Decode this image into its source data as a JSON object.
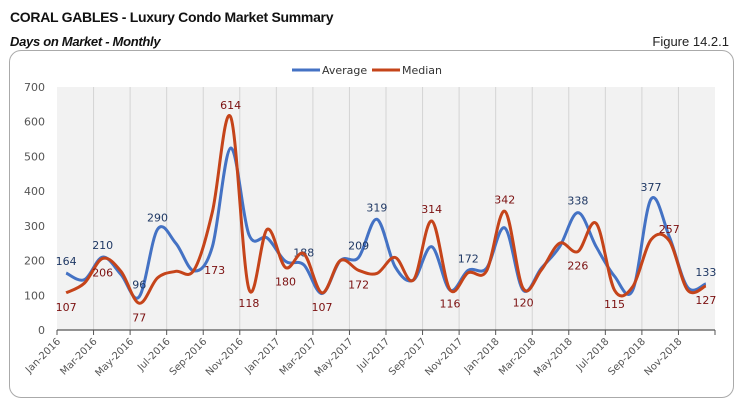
{
  "header": {
    "title": "CORAL GABLES - Luxury Condo Market Summary",
    "subtitle": "Days on Market - Monthly",
    "figure": "Figure 14.2.1"
  },
  "chart_data": {
    "type": "line",
    "smooth": true,
    "title": "",
    "xlabel": "",
    "ylabel": "",
    "ylim": [
      0,
      700
    ],
    "yticks": [
      0,
      100,
      200,
      300,
      400,
      500,
      600,
      700
    ],
    "grid": "vertical",
    "legend": "top-center",
    "x": [
      "Jan-2016",
      "Feb-2016",
      "Mar-2016",
      "Apr-2016",
      "May-2016",
      "Jun-2016",
      "Jul-2016",
      "Aug-2016",
      "Sep-2016",
      "Oct-2016",
      "Nov-2016",
      "Dec-2016",
      "Jan-2017",
      "Feb-2017",
      "Mar-2017",
      "Apr-2017",
      "May-2017",
      "Jun-2017",
      "Jul-2017",
      "Aug-2017",
      "Sep-2017",
      "Oct-2017",
      "Nov-2017",
      "Dec-2017",
      "Jan-2018",
      "Feb-2018",
      "Mar-2018",
      "Apr-2018",
      "May-2018",
      "Jun-2018",
      "Jul-2018",
      "Aug-2018",
      "Sep-2018",
      "Oct-2018",
      "Nov-2018",
      "Dec-2018"
    ],
    "xtick_labels": [
      "Jan-2016",
      "Mar-2016",
      "May-2016",
      "Jul-2016",
      "Sep-2016",
      "Nov-2016",
      "Jan-2017",
      "Mar-2017",
      "May-2017",
      "Jul-2017",
      "Sep-2017",
      "Nov-2017",
      "Jan-2018",
      "Mar-2018",
      "May-2018",
      "Jul-2018",
      "Sep-2018",
      "Nov-2018"
    ],
    "series": [
      {
        "name": "Average",
        "color": "#4472C4",
        "label_color": "#1F3864",
        "values": [
          164,
          145,
          210,
          160,
          96,
          290,
          250,
          170,
          240,
          524,
          275,
          265,
          198,
          188,
          105,
          200,
          209,
          319,
          182,
          144,
          240,
          115,
          172,
          178,
          294,
          115,
          178,
          240,
          338,
          240,
          155,
          115,
          377,
          269,
          123,
          133
        ],
        "data_labels": [
          [
            0,
            "164",
            "above"
          ],
          [
            2,
            "210",
            "above"
          ],
          [
            4,
            "96",
            "above"
          ],
          [
            5,
            "290",
            "above"
          ],
          [
            13,
            "188",
            "above"
          ],
          [
            16,
            "209",
            "above"
          ],
          [
            17,
            "319",
            "above"
          ],
          [
            22,
            "172",
            "above"
          ],
          [
            28,
            "338",
            "above"
          ],
          [
            32,
            "377",
            "above"
          ],
          [
            35,
            "133",
            "above"
          ]
        ]
      },
      {
        "name": "Median",
        "color": "#C5441A",
        "label_color": "#7B1010",
        "values": [
          107,
          135,
          206,
          169,
          77,
          150,
          169,
          173,
          340,
          614,
          118,
          290,
          180,
          220,
          107,
          200,
          172,
          163,
          209,
          144,
          314,
          116,
          165,
          170,
          342,
          120,
          173,
          250,
          226,
          307,
          115,
          125,
          260,
          257,
          115,
          127
        ],
        "data_labels": [
          [
            0,
            "107",
            "below"
          ],
          [
            2,
            "206",
            "below"
          ],
          [
            4,
            "77",
            "below"
          ],
          [
            7,
            "173",
            "right"
          ],
          [
            9,
            "614",
            "above"
          ],
          [
            10,
            "118",
            "below"
          ],
          [
            12,
            "180",
            "below"
          ],
          [
            14,
            "107",
            "below"
          ],
          [
            16,
            "172",
            "below"
          ],
          [
            20,
            "314",
            "above"
          ],
          [
            21,
            "116",
            "below"
          ],
          [
            24,
            "342",
            "above"
          ],
          [
            25,
            "120",
            "below"
          ],
          [
            28,
            "226",
            "below"
          ],
          [
            30,
            "115",
            "below"
          ],
          [
            33,
            "257",
            "above"
          ],
          [
            35,
            "127",
            "below"
          ]
        ]
      }
    ]
  }
}
